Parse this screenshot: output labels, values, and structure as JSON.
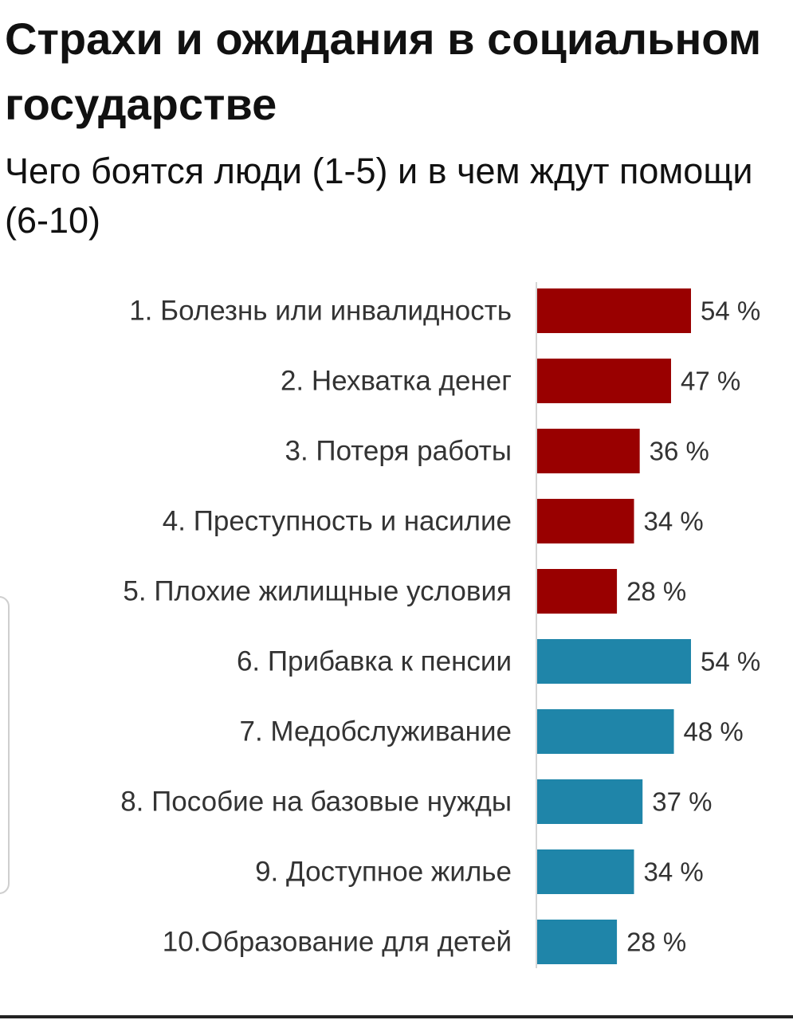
{
  "chart_data": {
    "type": "bar",
    "orientation": "horizontal",
    "title": "Страхи и ожидания в социальном государстве",
    "subtitle": "Чего боятся люди (1-5) и в чем ждут помощи (6-10)",
    "categories": [
      "1. Болезнь или инвалидность",
      "2. Нехватка денег",
      "3. Потеря работы",
      "4. Преступность и насилие",
      "5. Плохие жилищные условия",
      "6. Прибавка к пенсии",
      "7. Медобслуживание",
      "8. Пособие на базовые нужды",
      "9. Доступное жилье",
      "10.Образование для детей"
    ],
    "values": [
      54,
      47,
      36,
      34,
      28,
      54,
      48,
      37,
      34,
      28
    ],
    "value_labels": [
      "54 %",
      "47 %",
      "36 %",
      "34 %",
      "28 %",
      "54 %",
      "48 %",
      "37 %",
      "34 %",
      "28 %"
    ],
    "group_colors": [
      "#990000",
      "#990000",
      "#990000",
      "#990000",
      "#990000",
      "#1f85a9",
      "#1f85a9",
      "#1f85a9",
      "#1f85a9",
      "#1f85a9"
    ],
    "xlim": [
      0,
      54
    ],
    "grid": false,
    "legend": "none"
  }
}
